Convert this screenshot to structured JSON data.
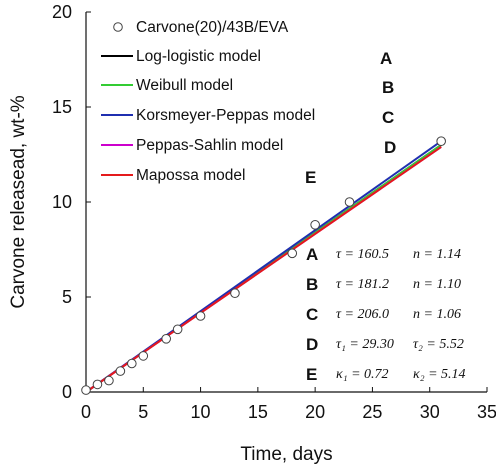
{
  "chart_data": {
    "type": "scatter",
    "xlabel": "Time, days",
    "ylabel": "Carvone releasead, wt-%",
    "xlim": [
      0,
      35
    ],
    "ylim": [
      0,
      20
    ],
    "xticks": [
      0,
      5,
      10,
      15,
      20,
      25,
      30,
      35
    ],
    "yticks": [
      0,
      5,
      10,
      15,
      20
    ],
    "grid": false,
    "legend_position": "top-left",
    "data_series": {
      "name": "Carvone(20)/43B/EVA",
      "marker": "open-circle",
      "x": [
        0,
        1,
        2,
        3,
        4,
        5,
        7,
        8,
        10,
        13,
        18,
        20,
        23,
        31
      ],
      "y": [
        0.1,
        0.4,
        0.6,
        1.1,
        1.5,
        1.9,
        2.8,
        3.3,
        4.0,
        5.2,
        7.3,
        8.8,
        10.0,
        13.2
      ]
    },
    "model_series": [
      {
        "name": "Log-logistic model",
        "letter": "A",
        "color": "#000000",
        "x": [
          0,
          31
        ],
        "y": [
          0,
          13.0
        ]
      },
      {
        "name": "Weibull model",
        "letter": "B",
        "color": "#33cc33",
        "x": [
          0,
          31
        ],
        "y": [
          0,
          13.0
        ]
      },
      {
        "name": "Korsmeyer-Peppas model",
        "letter": "C",
        "color": "#1f2fb0",
        "x": [
          0,
          31
        ],
        "y": [
          0,
          13.2
        ]
      },
      {
        "name": "Peppas-Sahlin model",
        "letter": "D",
        "color": "#cc00cc",
        "x": [
          0,
          31
        ],
        "y": [
          0,
          12.9
        ]
      },
      {
        "name": "Mapossa model",
        "letter": "E",
        "color": "#e41a1c",
        "x": [
          0,
          31
        ],
        "y": [
          0,
          12.9
        ]
      }
    ],
    "annotations": [
      {
        "letter": "A",
        "p1": "τ = 160.5",
        "p2": "n = 1.14"
      },
      {
        "letter": "B",
        "p1": "τ = 181.2",
        "p2": "n = 1.10"
      },
      {
        "letter": "C",
        "p1": "τ = 206.0",
        "p2": "n = 1.06"
      },
      {
        "letter": "D",
        "p1": "τ₁ = 29.30",
        "p2": "τ₂ = 5.52"
      },
      {
        "letter": "E",
        "p1": "κ₁ = 0.72",
        "p2": "κ₂ = 5.14"
      }
    ]
  }
}
